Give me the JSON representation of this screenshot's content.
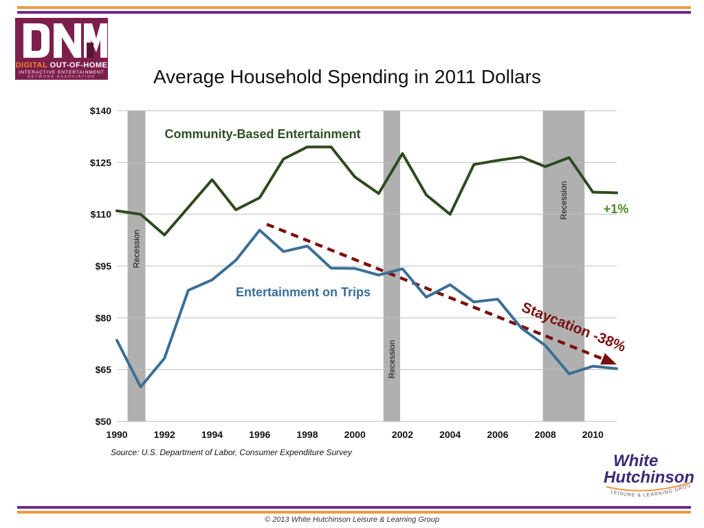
{
  "logo": {
    "mark": "DN",
    "line1_a": "DIGITAL",
    "line1_b": "OUT-OF-HOME",
    "line2": "INTERACTIVE ENTERTAINMENT",
    "line3": "NETWORK ASSOCIATION"
  },
  "source": "Source: U.S. Department of Labor, Consumer Expenditure Survey",
  "copyright": "© 2013 White Hutchinson Leisure & Learning Group",
  "wh_logo": {
    "line1": "White",
    "line2": "Hutchinson",
    "tagline": "LEISURE & LEARNING GROUP"
  },
  "colors": {
    "community": "#2d4a1e",
    "community_label": "#2d5020",
    "plus_label": "#4a8a1e",
    "trips": "#3a6f96",
    "staycation": "#7a0f0f",
    "recession": "#b0b0b0",
    "orange": "#ee9a3d",
    "purple": "#6c2c84"
  },
  "chart_data": {
    "type": "line",
    "title": "Average Household Spending in 2011 Dollars",
    "xlabel": "",
    "ylabel": "",
    "xlim": [
      1990,
      2011
    ],
    "ylim": [
      50,
      140
    ],
    "x_ticks": [
      1990,
      1992,
      1994,
      1996,
      1998,
      2000,
      2002,
      2004,
      2006,
      2008,
      2010
    ],
    "y_ticks": [
      50,
      65,
      80,
      95,
      110,
      125,
      140
    ],
    "y_tick_labels": [
      "$50",
      "$65",
      "$80",
      "$95",
      "$110",
      "$125",
      "$140"
    ],
    "grid": true,
    "x": [
      1990,
      1991,
      1992,
      1993,
      1994,
      1995,
      1996,
      1997,
      1998,
      1999,
      2000,
      2001,
      2002,
      2003,
      2004,
      2005,
      2006,
      2007,
      2008,
      2009,
      2010,
      2011
    ],
    "series": [
      {
        "name": "Community-Based Entertainment",
        "values": [
          111,
          110,
          104,
          112,
          120,
          111.3,
          114.8,
          126,
          129.5,
          129.5,
          120.8,
          116,
          127.6,
          115.6,
          110,
          124.4,
          125.6,
          126.6,
          123.8,
          126.4,
          116.4,
          116.2
        ],
        "end_label": "+1%"
      },
      {
        "name": "Entertainment on Trips",
        "values": [
          73.5,
          60,
          68.3,
          88,
          91,
          96.7,
          105.4,
          99.2,
          100.8,
          94.4,
          94.3,
          92.4,
          94.2,
          86,
          89.6,
          84.6,
          85.4,
          77,
          72,
          63.8,
          66,
          65.3
        ]
      }
    ],
    "recessions": [
      {
        "label": "Recession",
        "start": 1990.45,
        "end": 1991.2
      },
      {
        "label": "Recession",
        "start": 2001.2,
        "end": 2001.9
      },
      {
        "label": "Recession",
        "start": 2007.9,
        "end": 2009.65
      }
    ],
    "annotations": [
      {
        "text": "Staycation -38%",
        "type": "trend-arrow",
        "from": [
          1996.3,
          107.1
        ],
        "to": [
          2011,
          66.5
        ]
      }
    ]
  }
}
